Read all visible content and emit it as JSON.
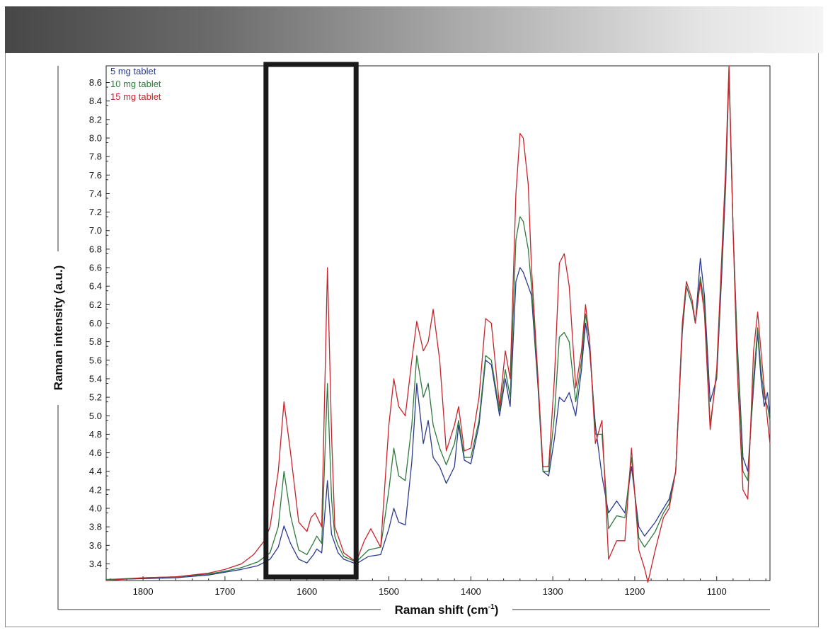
{
  "chart_data": {
    "type": "line",
    "xlabel": "Raman shift (cm",
    "xlabel_sup": "-1",
    "xlabel_suffix": ")",
    "ylabel": "Raman intensity (a.u.)",
    "x_reversed": true,
    "xlim": [
      1845,
      1035
    ],
    "ylim": [
      3.22,
      8.78
    ],
    "x_ticks": [
      1800,
      1700,
      1600,
      1500,
      1400,
      1300,
      1200,
      1100
    ],
    "y_ticks": [
      3.4,
      3.6,
      3.8,
      4.0,
      4.2,
      4.4,
      4.6,
      4.8,
      5.0,
      5.2,
      5.4,
      5.6,
      5.8,
      6.0,
      6.2,
      6.4,
      6.6,
      6.8,
      7.0,
      7.2,
      7.4,
      7.6,
      7.8,
      8.0,
      8.2,
      8.4,
      8.6
    ],
    "legend_position": "top-left",
    "highlight_region": [
      1650,
      1540
    ],
    "series": [
      {
        "name": "5 mg tablet",
        "color": "#2b3a8f",
        "points": [
          [
            1845,
            3.23
          ],
          [
            1800,
            3.24
          ],
          [
            1760,
            3.25
          ],
          [
            1720,
            3.28
          ],
          [
            1700,
            3.31
          ],
          [
            1680,
            3.34
          ],
          [
            1660,
            3.38
          ],
          [
            1645,
            3.45
          ],
          [
            1635,
            3.58
          ],
          [
            1628,
            3.81
          ],
          [
            1620,
            3.62
          ],
          [
            1610,
            3.45
          ],
          [
            1600,
            3.41
          ],
          [
            1592,
            3.5
          ],
          [
            1588,
            3.56
          ],
          [
            1582,
            3.52
          ],
          [
            1575,
            4.3
          ],
          [
            1570,
            3.72
          ],
          [
            1566,
            3.62
          ],
          [
            1562,
            3.52
          ],
          [
            1555,
            3.45
          ],
          [
            1540,
            3.4
          ],
          [
            1525,
            3.48
          ],
          [
            1510,
            3.5
          ],
          [
            1500,
            3.78
          ],
          [
            1494,
            4.0
          ],
          [
            1488,
            3.85
          ],
          [
            1480,
            3.82
          ],
          [
            1472,
            4.5
          ],
          [
            1466,
            5.35
          ],
          [
            1458,
            4.7
          ],
          [
            1452,
            4.95
          ],
          [
            1446,
            4.55
          ],
          [
            1438,
            4.45
          ],
          [
            1430,
            4.27
          ],
          [
            1420,
            4.45
          ],
          [
            1415,
            4.9
          ],
          [
            1408,
            4.52
          ],
          [
            1400,
            4.48
          ],
          [
            1390,
            4.9
          ],
          [
            1382,
            5.6
          ],
          [
            1375,
            5.55
          ],
          [
            1365,
            5.0
          ],
          [
            1358,
            5.4
          ],
          [
            1352,
            5.1
          ],
          [
            1345,
            6.45
          ],
          [
            1340,
            6.6
          ],
          [
            1336,
            6.55
          ],
          [
            1330,
            6.4
          ],
          [
            1326,
            6.3
          ],
          [
            1318,
            5.3
          ],
          [
            1312,
            4.4
          ],
          [
            1305,
            4.35
          ],
          [
            1298,
            4.75
          ],
          [
            1292,
            5.2
          ],
          [
            1286,
            5.15
          ],
          [
            1280,
            5.25
          ],
          [
            1272,
            5.0
          ],
          [
            1265,
            5.5
          ],
          [
            1260,
            6.0
          ],
          [
            1255,
            5.7
          ],
          [
            1248,
            4.9
          ],
          [
            1240,
            4.35
          ],
          [
            1232,
            3.95
          ],
          [
            1222,
            4.08
          ],
          [
            1212,
            3.95
          ],
          [
            1204,
            4.45
          ],
          [
            1195,
            3.8
          ],
          [
            1188,
            3.7
          ],
          [
            1175,
            3.85
          ],
          [
            1165,
            4.0
          ],
          [
            1158,
            4.1
          ],
          [
            1150,
            4.4
          ],
          [
            1142,
            5.9
          ],
          [
            1137,
            6.4
          ],
          [
            1130,
            6.2
          ],
          [
            1126,
            6.0
          ],
          [
            1120,
            6.7
          ],
          [
            1115,
            6.3
          ],
          [
            1108,
            5.15
          ],
          [
            1100,
            5.4
          ],
          [
            1094,
            6.5
          ],
          [
            1089,
            7.5
          ],
          [
            1085,
            8.7
          ],
          [
            1080,
            7.0
          ],
          [
            1075,
            5.8
          ],
          [
            1068,
            4.55
          ],
          [
            1062,
            4.4
          ],
          [
            1055,
            5.3
          ],
          [
            1050,
            5.9
          ],
          [
            1046,
            5.4
          ],
          [
            1042,
            5.1
          ],
          [
            1038,
            5.25
          ],
          [
            1035,
            5.0
          ]
        ]
      },
      {
        "name": "10 mg tablet",
        "color": "#2e7a3d",
        "points": [
          [
            1845,
            3.23
          ],
          [
            1800,
            3.25
          ],
          [
            1760,
            3.26
          ],
          [
            1720,
            3.29
          ],
          [
            1700,
            3.32
          ],
          [
            1680,
            3.36
          ],
          [
            1660,
            3.42
          ],
          [
            1645,
            3.52
          ],
          [
            1635,
            3.8
          ],
          [
            1628,
            4.4
          ],
          [
            1620,
            3.92
          ],
          [
            1610,
            3.55
          ],
          [
            1600,
            3.5
          ],
          [
            1592,
            3.63
          ],
          [
            1588,
            3.7
          ],
          [
            1582,
            3.62
          ],
          [
            1575,
            5.35
          ],
          [
            1570,
            4.1
          ],
          [
            1566,
            3.7
          ],
          [
            1562,
            3.6
          ],
          [
            1555,
            3.48
          ],
          [
            1540,
            3.42
          ],
          [
            1525,
            3.55
          ],
          [
            1510,
            3.58
          ],
          [
            1500,
            4.2
          ],
          [
            1494,
            4.65
          ],
          [
            1488,
            4.35
          ],
          [
            1480,
            4.3
          ],
          [
            1472,
            4.9
          ],
          [
            1466,
            5.65
          ],
          [
            1458,
            5.2
          ],
          [
            1452,
            5.35
          ],
          [
            1446,
            4.9
          ],
          [
            1438,
            4.65
          ],
          [
            1430,
            4.47
          ],
          [
            1420,
            4.7
          ],
          [
            1415,
            4.95
          ],
          [
            1408,
            4.55
          ],
          [
            1400,
            4.55
          ],
          [
            1390,
            4.95
          ],
          [
            1382,
            5.65
          ],
          [
            1375,
            5.6
          ],
          [
            1365,
            5.05
          ],
          [
            1358,
            5.5
          ],
          [
            1352,
            5.2
          ],
          [
            1345,
            6.9
          ],
          [
            1340,
            7.15
          ],
          [
            1336,
            7.1
          ],
          [
            1330,
            6.8
          ],
          [
            1326,
            6.4
          ],
          [
            1318,
            5.35
          ],
          [
            1312,
            4.4
          ],
          [
            1305,
            4.4
          ],
          [
            1298,
            5.0
          ],
          [
            1292,
            5.85
          ],
          [
            1286,
            5.9
          ],
          [
            1280,
            5.8
          ],
          [
            1272,
            5.15
          ],
          [
            1265,
            5.6
          ],
          [
            1260,
            6.1
          ],
          [
            1255,
            5.8
          ],
          [
            1248,
            4.8
          ],
          [
            1240,
            4.8
          ],
          [
            1232,
            3.78
          ],
          [
            1222,
            3.92
          ],
          [
            1212,
            3.9
          ],
          [
            1204,
            4.55
          ],
          [
            1195,
            3.68
          ],
          [
            1188,
            3.58
          ],
          [
            1175,
            3.75
          ],
          [
            1165,
            3.95
          ],
          [
            1158,
            4.05
          ],
          [
            1150,
            4.4
          ],
          [
            1142,
            5.95
          ],
          [
            1137,
            6.4
          ],
          [
            1130,
            6.2
          ],
          [
            1126,
            6.0
          ],
          [
            1120,
            6.5
          ],
          [
            1115,
            6.2
          ],
          [
            1108,
            4.9
          ],
          [
            1100,
            5.45
          ],
          [
            1094,
            6.6
          ],
          [
            1089,
            7.6
          ],
          [
            1085,
            8.75
          ],
          [
            1080,
            7.0
          ],
          [
            1075,
            5.75
          ],
          [
            1068,
            4.4
          ],
          [
            1062,
            4.3
          ],
          [
            1055,
            5.4
          ],
          [
            1050,
            5.95
          ],
          [
            1046,
            5.5
          ],
          [
            1042,
            5.2
          ],
          [
            1038,
            5.1
          ],
          [
            1035,
            4.95
          ]
        ]
      },
      {
        "name": "15 mg tablet",
        "color": "#c8242b",
        "points": [
          [
            1845,
            3.22
          ],
          [
            1800,
            3.25
          ],
          [
            1760,
            3.26
          ],
          [
            1720,
            3.3
          ],
          [
            1700,
            3.34
          ],
          [
            1680,
            3.4
          ],
          [
            1665,
            3.5
          ],
          [
            1652,
            3.65
          ],
          [
            1645,
            3.8
          ],
          [
            1635,
            4.4
          ],
          [
            1628,
            5.15
          ],
          [
            1620,
            4.6
          ],
          [
            1610,
            3.85
          ],
          [
            1600,
            3.75
          ],
          [
            1595,
            3.9
          ],
          [
            1590,
            3.95
          ],
          [
            1582,
            3.8
          ],
          [
            1575,
            6.6
          ],
          [
            1570,
            4.8
          ],
          [
            1566,
            3.8
          ],
          [
            1562,
            3.7
          ],
          [
            1555,
            3.52
          ],
          [
            1540,
            3.42
          ],
          [
            1530,
            3.65
          ],
          [
            1522,
            3.78
          ],
          [
            1510,
            3.58
          ],
          [
            1500,
            4.9
          ],
          [
            1494,
            5.4
          ],
          [
            1488,
            5.1
          ],
          [
            1480,
            5.0
          ],
          [
            1472,
            5.6
          ],
          [
            1466,
            6.02
          ],
          [
            1458,
            5.7
          ],
          [
            1452,
            5.8
          ],
          [
            1446,
            6.15
          ],
          [
            1438,
            5.6
          ],
          [
            1430,
            4.62
          ],
          [
            1420,
            4.9
          ],
          [
            1415,
            5.1
          ],
          [
            1408,
            4.62
          ],
          [
            1400,
            4.65
          ],
          [
            1390,
            5.2
          ],
          [
            1382,
            6.05
          ],
          [
            1375,
            6.0
          ],
          [
            1365,
            5.1
          ],
          [
            1358,
            5.7
          ],
          [
            1352,
            5.4
          ],
          [
            1345,
            7.4
          ],
          [
            1340,
            8.05
          ],
          [
            1336,
            8.0
          ],
          [
            1330,
            7.5
          ],
          [
            1326,
            6.6
          ],
          [
            1318,
            5.4
          ],
          [
            1312,
            4.45
          ],
          [
            1305,
            4.45
          ],
          [
            1298,
            5.4
          ],
          [
            1292,
            6.65
          ],
          [
            1286,
            6.75
          ],
          [
            1280,
            6.4
          ],
          [
            1272,
            5.3
          ],
          [
            1265,
            5.7
          ],
          [
            1260,
            6.2
          ],
          [
            1255,
            5.8
          ],
          [
            1248,
            4.7
          ],
          [
            1240,
            4.95
          ],
          [
            1232,
            3.45
          ],
          [
            1222,
            3.65
          ],
          [
            1212,
            3.65
          ],
          [
            1204,
            4.65
          ],
          [
            1195,
            3.55
          ],
          [
            1188,
            3.35
          ],
          [
            1184,
            3.2
          ],
          [
            1175,
            3.55
          ],
          [
            1165,
            3.9
          ],
          [
            1158,
            4.0
          ],
          [
            1150,
            4.4
          ],
          [
            1142,
            6.0
          ],
          [
            1137,
            6.45
          ],
          [
            1130,
            6.25
          ],
          [
            1126,
            6.0
          ],
          [
            1120,
            6.45
          ],
          [
            1115,
            6.1
          ],
          [
            1108,
            4.85
          ],
          [
            1100,
            5.5
          ],
          [
            1094,
            6.7
          ],
          [
            1089,
            7.7
          ],
          [
            1085,
            8.78
          ],
          [
            1080,
            7.0
          ],
          [
            1075,
            5.5
          ],
          [
            1068,
            4.2
          ],
          [
            1062,
            4.1
          ],
          [
            1055,
            5.7
          ],
          [
            1050,
            6.12
          ],
          [
            1046,
            5.7
          ],
          [
            1042,
            5.3
          ],
          [
            1038,
            4.95
          ],
          [
            1035,
            4.7
          ]
        ]
      }
    ]
  }
}
